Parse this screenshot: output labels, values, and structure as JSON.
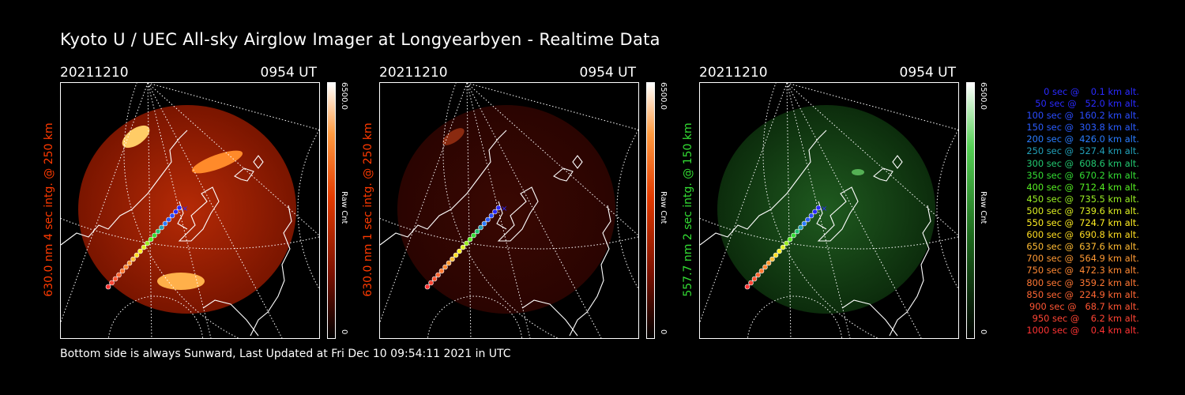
{
  "title": "Kyoto U / UEC All-sky Airglow Imager at Longyearbyen - Realtime Data",
  "footer": "Bottom side is always Sunward, Last Updated at Fri Dec 10 09:54:11 2021 in UTC",
  "panels": [
    {
      "date": "20211210",
      "time": "0954 UT",
      "ylabel": "630.0 nm 4 sec intg. @ 250 km",
      "cb_max": "6500.0",
      "cb_min": "0",
      "cb_unit": "Raw Cnt",
      "color": "#ff3a00",
      "label_color": "#ff3a00",
      "intensity": "high"
    },
    {
      "date": "20211210",
      "time": "0954 UT",
      "ylabel": "630.0 nm 1 sec intg. @ 250 km",
      "cb_max": "6500.0",
      "cb_min": "0",
      "cb_unit": "Raw Cnt",
      "color": "#ff3a00",
      "label_color": "#ff3a00",
      "intensity": "low"
    },
    {
      "date": "20211210",
      "time": "0954 UT",
      "ylabel": "557.7 nm 2 sec intg. @ 150 km",
      "cb_max": "6500.0",
      "cb_min": "0",
      "cb_unit": "Raw Cnt",
      "color": "#2fd02f",
      "label_color": "#33dd33",
      "intensity": "green"
    }
  ],
  "legend": [
    {
      "text": "   0 sec @    0.1 km alt.",
      "color": "#2a2aff"
    },
    {
      "text": "  50 sec @   52.0 km alt.",
      "color": "#2a2aff"
    },
    {
      "text": "100 sec @  160.2 km alt.",
      "color": "#2a4cff"
    },
    {
      "text": "150 sec @  303.8 km alt.",
      "color": "#2a5cff"
    },
    {
      "text": "200 sec @  426.0 km alt.",
      "color": "#2a7cff"
    },
    {
      "text": "250 sec @  527.4 km alt.",
      "color": "#22a0b8"
    },
    {
      "text": "300 sec @  608.6 km alt.",
      "color": "#22c870"
    },
    {
      "text": "350 sec @  670.2 km alt.",
      "color": "#33dd33"
    },
    {
      "text": "400 sec @  712.4 km alt.",
      "color": "#55ee22"
    },
    {
      "text": "450 sec @  735.5 km alt.",
      "color": "#99ee22"
    },
    {
      "text": "500 sec @  739.6 km alt.",
      "color": "#ddee22"
    },
    {
      "text": "550 sec @  724.7 km alt.",
      "color": "#ffee22"
    },
    {
      "text": "600 sec @  690.8 km alt.",
      "color": "#ffdd22"
    },
    {
      "text": "650 sec @  637.6 km alt.",
      "color": "#ffbb33"
    },
    {
      "text": "700 sec @  564.9 km alt.",
      "color": "#ff9933"
    },
    {
      "text": "750 sec @  472.3 km alt.",
      "color": "#ff8833"
    },
    {
      "text": "800 sec @  359.2 km alt.",
      "color": "#ff7733"
    },
    {
      "text": "850 sec @  224.9 km alt.",
      "color": "#ff6633"
    },
    {
      "text": "900 sec @   68.7 km alt.",
      "color": "#ff5533"
    },
    {
      "text": "950 sec @    6.2 km alt.",
      "color": "#ff4433"
    },
    {
      "text": "1000 sec @    0.4 km alt.",
      "color": "#ff3333"
    }
  ]
}
